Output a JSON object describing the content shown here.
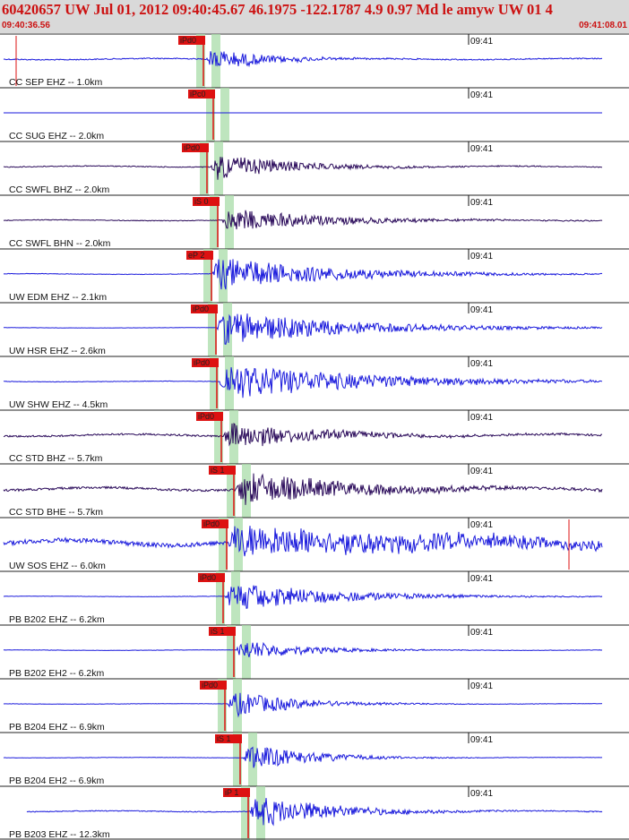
{
  "header": {
    "title": "60420657 UW Jul 01, 2012 09:40:45.67    46.1975 -122.1787  4.9 0.97 Md le amyw UW 01    4",
    "start_time": "09:40:36.56",
    "end_time": "09:41:08.01"
  },
  "minute_label": "09:41",
  "colors": {
    "header_text": "#cc1111",
    "trace_blue": "#1a1adc",
    "trace_dark": "#2a0a5a",
    "pick_red": "#dd1111",
    "window_green": "#a8dca8"
  },
  "traces": [
    {
      "label": "CC SEP EHZ -- 1.0km",
      "pick": "iPd0",
      "pick_t": 0.324,
      "onset": 0.326,
      "color": "blue",
      "amp": 14,
      "pre": 1.2,
      "decay": 0.09,
      "spike": 0.025
    },
    {
      "label": "CC SUG EHZ -- 2.0km",
      "pick": "iPc0",
      "pick_t": 0.339,
      "onset": null,
      "color": "blue",
      "amp": 0,
      "pre": 0,
      "decay": 0.1,
      "spike": null
    },
    {
      "label": "CC SWFL BHZ -- 2.0km",
      "pick": "iPd0",
      "pick_t": 0.329,
      "onset": 0.335,
      "color": "dark",
      "amp": 16,
      "pre": 1.0,
      "decay": 0.12,
      "spike": null
    },
    {
      "label": "CC SWFL BHN -- 2.0km",
      "pick": "iS 0",
      "pick_t": 0.346,
      "onset": 0.352,
      "color": "dark",
      "amp": 14,
      "pre": 0.8,
      "decay": 0.16,
      "spike": null
    },
    {
      "label": "UW EDM EHZ -- 2.1km",
      "pick": "eP 2",
      "pick_t": 0.336,
      "onset": 0.336,
      "color": "blue",
      "amp": 20,
      "pre": 0.6,
      "decay": 0.18,
      "spike": null
    },
    {
      "label": "UW HSR EHZ -- 2.6km",
      "pick": "iPd0",
      "pick_t": 0.343,
      "onset": 0.345,
      "color": "blue",
      "amp": 20,
      "pre": 0.3,
      "decay": 0.2,
      "spike": null
    },
    {
      "label": "UW SHW EHZ -- 4.5km",
      "pick": "iPd0",
      "pick_t": 0.345,
      "onset": 0.347,
      "color": "blue",
      "amp": 22,
      "pre": 0.6,
      "decay": 0.22,
      "spike": null
    },
    {
      "label": "CC STD BHZ -- 5.7km",
      "pick": "iPd0",
      "pick_t": 0.352,
      "onset": 0.355,
      "color": "dark",
      "amp": 17,
      "pre": 2.0,
      "decay": 0.14,
      "spike": null
    },
    {
      "label": "CC STD BHE -- 5.7km",
      "pick": "iS 1",
      "pick_t": 0.372,
      "onset": 0.375,
      "color": "dark",
      "amp": 20,
      "pre": 2.5,
      "decay": 0.18,
      "spike": null
    },
    {
      "label": "UW SOS EHZ -- 6.0km",
      "pick": "iPd0",
      "pick_t": 0.36,
      "onset": 0.362,
      "color": "blue",
      "amp": 20,
      "pre": 5.0,
      "decay": 0.4,
      "spike": 0.905
    },
    {
      "label": "PB B202 EHZ -- 6.2km",
      "pick": "iPd0",
      "pick_t": 0.355,
      "onset": 0.357,
      "color": "blue",
      "amp": 18,
      "pre": 0.4,
      "decay": 0.16,
      "spike": null
    },
    {
      "label": "PB B202 EH2 -- 6.2km",
      "pick": "iS 1",
      "pick_t": 0.372,
      "onset": 0.375,
      "color": "blue",
      "amp": 13,
      "pre": 0.4,
      "decay": 0.1,
      "spike": null
    },
    {
      "label": "PB B204 EHZ -- 6.9km",
      "pick": "iPd0",
      "pick_t": 0.358,
      "onset": 0.362,
      "color": "blue",
      "amp": 16,
      "pre": 0.4,
      "decay": 0.1,
      "spike": null
    },
    {
      "label": "PB B204 EH2 -- 6.9km",
      "pick": "iS 1",
      "pick_t": 0.382,
      "onset": 0.386,
      "color": "blue",
      "amp": 17,
      "pre": 0.4,
      "decay": 0.1,
      "spike": null
    },
    {
      "label": "PB B203 EHZ -- 12.3km",
      "pick": "iP 1",
      "pick_t": 0.395,
      "onset": 0.398,
      "color": "blue",
      "amp": 20,
      "pre": 1.0,
      "decay": 0.12,
      "spike": null
    }
  ]
}
